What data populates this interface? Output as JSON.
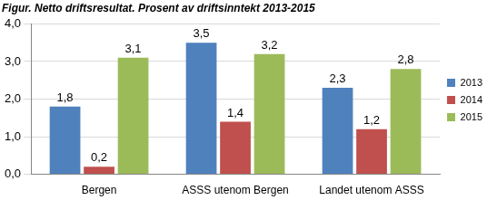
{
  "chart_data": {
    "type": "bar",
    "title": "Figur. Netto driftsresultat. Prosent av driftsinntekt 2013-2015",
    "categories": [
      "Bergen",
      "ASSS utenom Bergen",
      "Landet utenom ASSS"
    ],
    "series": [
      {
        "name": "2013",
        "color": "#4F81BD",
        "values": [
          1.8,
          3.5,
          2.3
        ],
        "value_labels": [
          "1,8",
          "3,5",
          "2,3"
        ]
      },
      {
        "name": "2014",
        "color": "#C0504D",
        "values": [
          0.2,
          1.4,
          1.2
        ],
        "value_labels": [
          "0,2",
          "1,4",
          "1,2"
        ]
      },
      {
        "name": "2015",
        "color": "#9BBB59",
        "values": [
          3.1,
          3.2,
          2.8
        ],
        "value_labels": [
          "3,1",
          "3,2",
          "2,8"
        ]
      }
    ],
    "ylim": [
      0,
      4
    ],
    "yticks": [
      {
        "value": 0,
        "label": "0,0"
      },
      {
        "value": 1,
        "label": "1,0"
      },
      {
        "value": 2,
        "label": "2,0"
      },
      {
        "value": 3,
        "label": "3,0"
      },
      {
        "value": 4,
        "label": "4,0"
      }
    ],
    "grid": true,
    "legend": "right",
    "data_labels": true
  }
}
